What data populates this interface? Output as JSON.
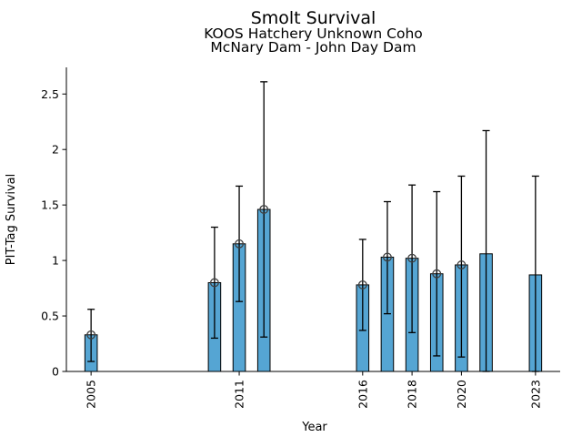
{
  "chart_data": {
    "type": "bar",
    "title": "Smolt Survival",
    "subtitle_line1": "KOOS Hatchery Unknown Coho",
    "subtitle_line2": "McNary Dam - John Day Dam",
    "xlabel": "Year",
    "ylabel": "PIT-Tag Survival",
    "xlim": [
      2004,
      2024
    ],
    "ylim": [
      0,
      2.74
    ],
    "yticks": [
      0,
      0.5,
      1,
      1.5,
      2,
      2.5
    ],
    "xticks": [
      2005,
      2011,
      2016,
      2018,
      2020,
      2023
    ],
    "x_tick_label_rotation_deg": 90,
    "grid": false,
    "bar_width_years": 0.5,
    "bar_color": "#55A5D3",
    "bar_edge_color": "#000000",
    "error_bar_color": "#000000",
    "marker_style": "open-circle",
    "marker_color": "#3F3F3F",
    "background_color": "#FFFFFF",
    "points": [
      {
        "year": 2005,
        "value": 0.33,
        "ci_low": 0.09,
        "ci_high": 0.56,
        "marker": true
      },
      {
        "year": 2010,
        "value": 0.8,
        "ci_low": 0.3,
        "ci_high": 1.3,
        "marker": true
      },
      {
        "year": 2011,
        "value": 1.15,
        "ci_low": 0.63,
        "ci_high": 1.67,
        "marker": true
      },
      {
        "year": 2012,
        "value": 1.46,
        "ci_low": 0.31,
        "ci_high": 2.61,
        "marker": true
      },
      {
        "year": 2016,
        "value": 0.78,
        "ci_low": 0.37,
        "ci_high": 1.19,
        "marker": true
      },
      {
        "year": 2017,
        "value": 1.03,
        "ci_low": 0.52,
        "ci_high": 1.53,
        "marker": true
      },
      {
        "year": 2018,
        "value": 1.02,
        "ci_low": 0.35,
        "ci_high": 1.68,
        "marker": true
      },
      {
        "year": 2019,
        "value": 0.88,
        "ci_low": 0.14,
        "ci_high": 1.62,
        "marker": true
      },
      {
        "year": 2020,
        "value": 0.96,
        "ci_low": 0.13,
        "ci_high": 1.76,
        "marker": true
      },
      {
        "year": 2021,
        "value": 1.06,
        "ci_low": 0.0,
        "ci_high": 2.17,
        "marker": false
      },
      {
        "year": 2023,
        "value": 0.87,
        "ci_low": 0.0,
        "ci_high": 1.76,
        "marker": false
      }
    ]
  }
}
